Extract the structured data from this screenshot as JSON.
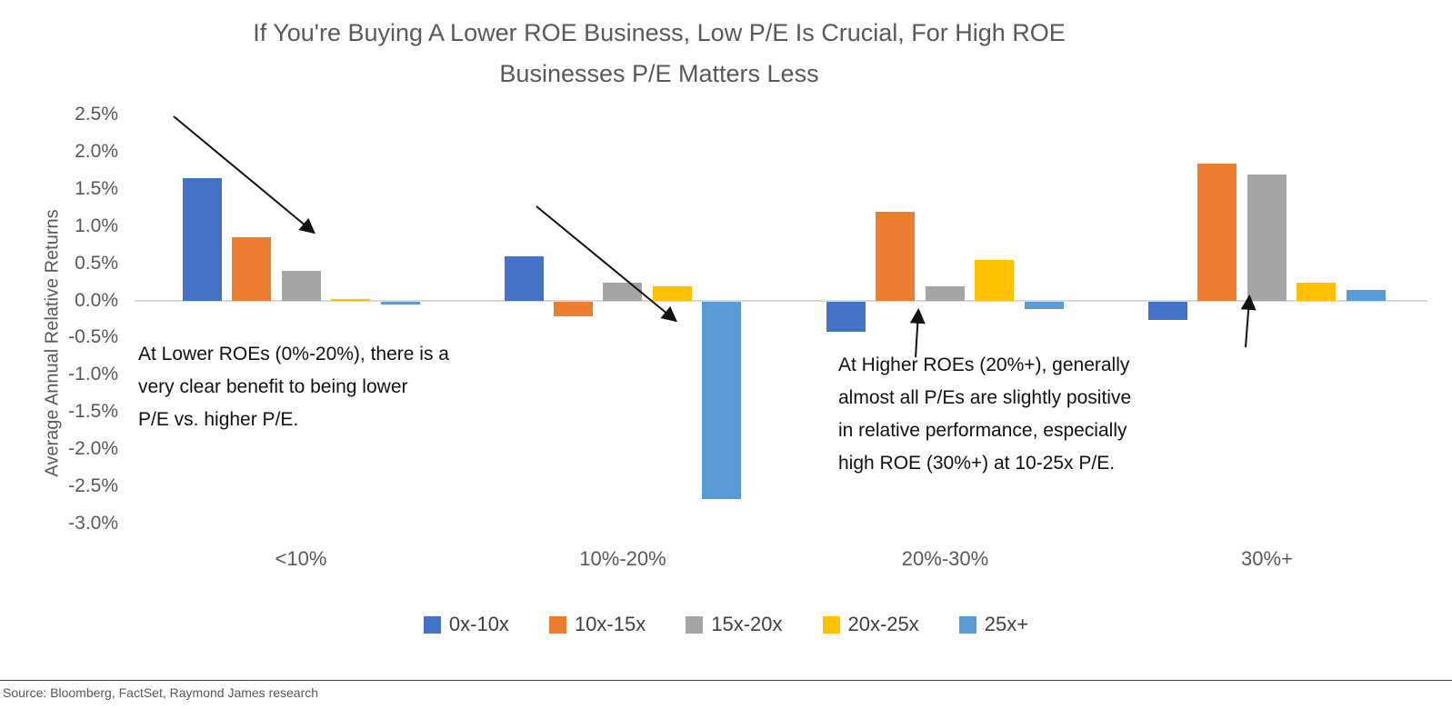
{
  "title": "If You're Buying A Lower ROE Business, Low P/E Is Crucial, For High ROE\nBusinesses P/E Matters Less",
  "chart_data": {
    "type": "bar",
    "title": "If You're Buying A Lower ROE Business, Low P/E Is Crucial, For High ROE Businesses P/E Matters Less",
    "xlabel": "",
    "ylabel": "Average Annual Relative Returns",
    "categories": [
      "<10%",
      "10%-20%",
      "20%-30%",
      "30%+"
    ],
    "series": [
      {
        "name": "0x-10x",
        "color": "#4472C4",
        "values": [
          1.65,
          0.6,
          -0.4,
          -0.25
        ]
      },
      {
        "name": "10x-15x",
        "color": "#ED7D31",
        "values": [
          0.85,
          -0.2,
          1.2,
          1.85
        ]
      },
      {
        "name": "15x-20x",
        "color": "#A5A5A5",
        "values": [
          0.4,
          0.25,
          0.2,
          1.7
        ]
      },
      {
        "name": "20x-25x",
        "color": "#FFC000",
        "values": [
          0.02,
          0.2,
          0.55,
          0.25
        ]
      },
      {
        "name": "25x+",
        "color": "#5B9BD5",
        "values": [
          -0.03,
          -2.65,
          -0.1,
          0.15
        ]
      }
    ],
    "y_ticks": [
      "2.5%",
      "2.0%",
      "1.5%",
      "1.0%",
      "0.5%",
      "0.0%",
      "-0.5%",
      "-1.0%",
      "-1.5%",
      "-2.0%",
      "-2.5%",
      "-3.0%"
    ],
    "ylim": [
      -3.0,
      2.5
    ],
    "grid": false,
    "legend_position": "bottom"
  },
  "annotations": {
    "lower_roe": "At Lower ROEs (0%-20%), there is a\nvery clear benefit to being lower\nP/E vs. higher P/E.",
    "higher_roe": "At Higher ROEs (20%+), generally\nalmost all P/Es are slightly positive\nin relative performance, especially\nhigh ROE (30%+) at 10-25x P/E."
  },
  "source": "Source: Bloomberg, FactSet, Raymond James research"
}
